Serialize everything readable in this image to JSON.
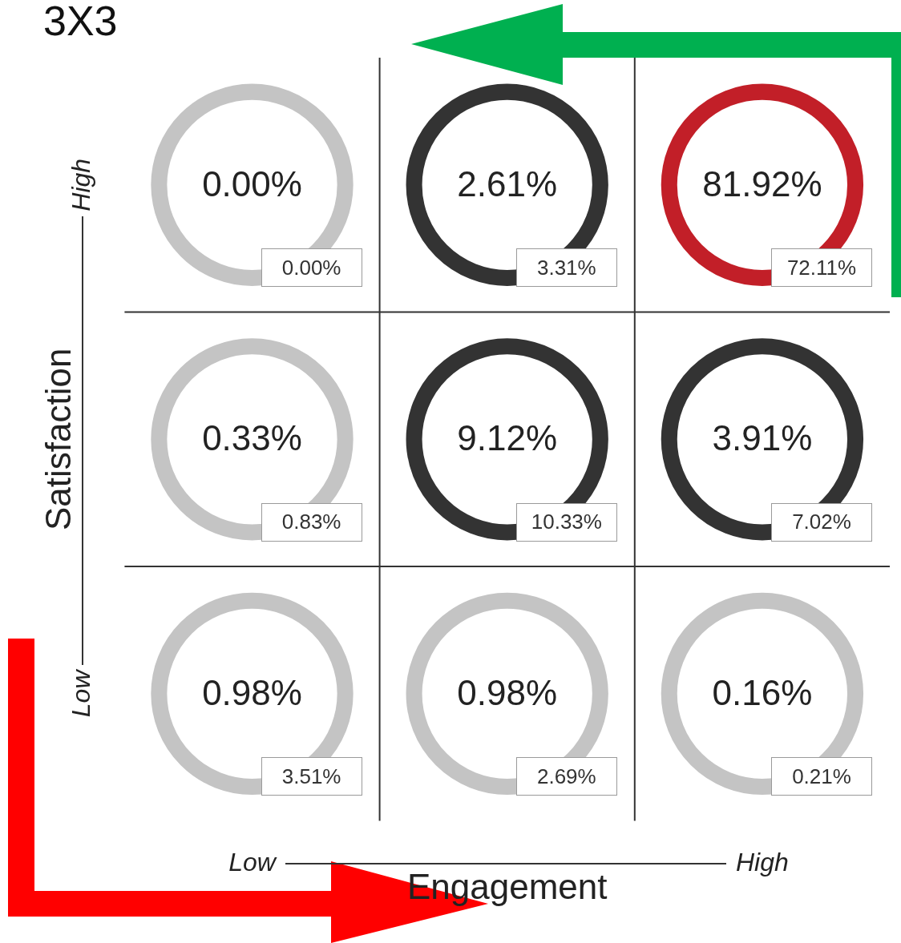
{
  "chart_data": {
    "type": "heatmap",
    "title": "3X3",
    "xlabel": "Engagement",
    "ylabel": "Satisfaction",
    "categories": [
      "Low",
      null,
      "High"
    ],
    "y_categories": [
      "High",
      null,
      "Low"
    ],
    "cells": [
      [
        0.0,
        2.61,
        81.92
      ],
      [
        0.33,
        9.12,
        3.91
      ],
      [
        0.98,
        0.98,
        0.16
      ]
    ],
    "cell_labels": [
      [
        "0.00%",
        "2.61%",
        "81.92%"
      ],
      [
        "0.33%",
        "9.12%",
        "3.91%"
      ],
      [
        "0.98%",
        "0.98%",
        "0.16%"
      ]
    ],
    "colors": [
      [
        "#c4c4c4",
        "#333333",
        "#c21f28"
      ],
      [
        "#c4c4c4",
        "#333333",
        "#333333"
      ],
      [
        "#c4c4c4",
        "#c4c4c4",
        "#c4c4c4"
      ]
    ],
    "annotations": [
      "0.00%",
      "3.31%",
      "72.11%",
      "0.83%",
      "10.33%",
      "7.02%",
      "3.51%",
      "2.69%",
      "0.21%"
    ]
  }
}
